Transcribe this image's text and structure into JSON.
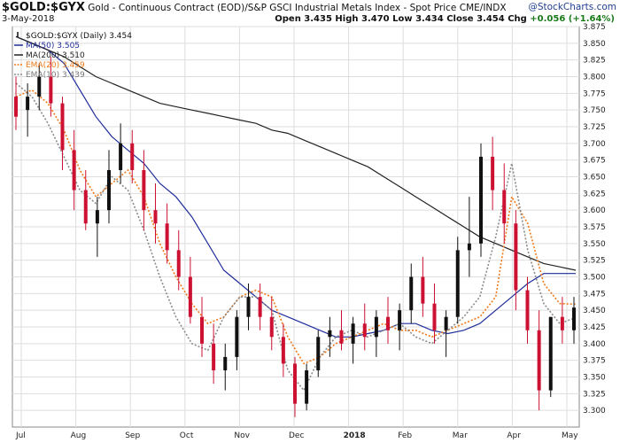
{
  "header": {
    "symbol": "$GOLD:$GYX",
    "description": "Gold - Continuous Contract (EOD)/S&P GSCI Industrial Metals Index - Spot Price",
    "exchange": "CME/INDX",
    "date": "3-May-2018",
    "brand": "@StockCharts.com",
    "ohlc": {
      "open_label": "Open",
      "open": "3.435",
      "high_label": "High",
      "high": "3.470",
      "low_label": "Low",
      "low": "3.434",
      "close_label": "Close",
      "close": "3.454",
      "chg_label": "Chg",
      "chg": "+0.056 (+1.64%)"
    }
  },
  "legend": [
    {
      "label": "$GOLD:$GYX (Daily) 3.454",
      "color": "#111111",
      "style": "price"
    },
    {
      "label": "MA(50) 3.505",
      "color": "#1f2d9a",
      "style": "solid"
    },
    {
      "label": "MA(200) 3.510",
      "color": "#222222",
      "style": "solid"
    },
    {
      "label": "EMA(20) 3.459",
      "color": "#f07a1a",
      "style": "dotted"
    },
    {
      "label": "EMA(10) 3.439",
      "color": "#8a8a8a",
      "style": "dotted"
    }
  ],
  "chart_data": {
    "type": "ohlc",
    "x_ticks": [
      "Jul",
      "Aug",
      "Sep",
      "Oct",
      "Nov",
      "Dec",
      "2018",
      "Feb",
      "Mar",
      "Apr",
      "May"
    ],
    "ylim": [
      3.275,
      3.875
    ],
    "y_ticks": [
      3.3,
      3.325,
      3.35,
      3.375,
      3.4,
      3.425,
      3.45,
      3.475,
      3.5,
      3.525,
      3.55,
      3.575,
      3.6,
      3.625,
      3.65,
      3.675,
      3.7,
      3.725,
      3.75,
      3.775,
      3.8,
      3.825,
      3.85,
      3.875
    ],
    "up_color": "#111111",
    "down_color": "#cc1133",
    "grid": true,
    "series": [
      {
        "name": "MA(50)",
        "color": "#1f2d9a",
        "values": [
          3.86,
          3.85,
          3.84,
          3.82,
          3.78,
          3.74,
          3.71,
          3.69,
          3.67,
          3.64,
          3.62,
          3.59,
          3.55,
          3.51,
          3.49,
          3.47,
          3.45,
          3.44,
          3.43,
          3.42,
          3.41,
          3.41,
          3.415,
          3.42,
          3.43,
          3.43,
          3.42,
          3.415,
          3.42,
          3.43,
          3.45,
          3.47,
          3.49,
          3.505,
          3.505,
          3.505
        ]
      },
      {
        "name": "MA(200)",
        "color": "#222222",
        "values": [
          3.86,
          3.85,
          3.84,
          3.83,
          3.815,
          3.8,
          3.79,
          3.78,
          3.77,
          3.76,
          3.755,
          3.75,
          3.745,
          3.74,
          3.735,
          3.73,
          3.72,
          3.715,
          3.705,
          3.695,
          3.685,
          3.675,
          3.665,
          3.65,
          3.635,
          3.62,
          3.605,
          3.59,
          3.575,
          3.56,
          3.55,
          3.54,
          3.53,
          3.52,
          3.515,
          3.51
        ]
      },
      {
        "name": "EMA(20)",
        "color": "#f07a1a",
        "values": [
          3.77,
          3.78,
          3.76,
          3.72,
          3.66,
          3.62,
          3.64,
          3.66,
          3.62,
          3.55,
          3.5,
          3.46,
          3.43,
          3.44,
          3.47,
          3.48,
          3.47,
          3.41,
          3.37,
          3.38,
          3.4,
          3.41,
          3.42,
          3.43,
          3.42,
          3.42,
          3.41,
          3.42,
          3.43,
          3.44,
          3.47,
          3.62,
          3.58,
          3.49,
          3.46,
          3.459
        ]
      },
      {
        "name": "EMA(10)",
        "color": "#8a8a8a",
        "values": [
          3.79,
          3.77,
          3.73,
          3.68,
          3.63,
          3.61,
          3.65,
          3.63,
          3.57,
          3.5,
          3.44,
          3.4,
          3.39,
          3.44,
          3.47,
          3.47,
          3.45,
          3.36,
          3.33,
          3.38,
          3.41,
          3.42,
          3.41,
          3.42,
          3.43,
          3.41,
          3.4,
          3.42,
          3.44,
          3.47,
          3.56,
          3.67,
          3.54,
          3.46,
          3.43,
          3.439
        ]
      }
    ],
    "bars": [
      [
        3.77,
        3.8,
        3.72,
        3.74
      ],
      [
        3.75,
        3.79,
        3.71,
        3.77
      ],
      [
        3.77,
        3.82,
        3.75,
        3.8
      ],
      [
        3.8,
        3.83,
        3.74,
        3.76
      ],
      [
        3.76,
        3.77,
        3.66,
        3.69
      ],
      [
        3.69,
        3.72,
        3.6,
        3.63
      ],
      [
        3.63,
        3.66,
        3.57,
        3.58
      ],
      [
        3.58,
        3.62,
        3.53,
        3.6
      ],
      [
        3.6,
        3.69,
        3.58,
        3.66
      ],
      [
        3.66,
        3.73,
        3.64,
        3.7
      ],
      [
        3.7,
        3.72,
        3.64,
        3.66
      ],
      [
        3.66,
        3.69,
        3.57,
        3.6
      ],
      [
        3.6,
        3.64,
        3.55,
        3.58
      ],
      [
        3.58,
        3.61,
        3.52,
        3.54
      ],
      [
        3.54,
        3.57,
        3.48,
        3.5
      ],
      [
        3.5,
        3.53,
        3.43,
        3.44
      ],
      [
        3.44,
        3.47,
        3.38,
        3.4
      ],
      [
        3.4,
        3.43,
        3.34,
        3.36
      ],
      [
        3.36,
        3.4,
        3.33,
        3.38
      ],
      [
        3.38,
        3.45,
        3.36,
        3.44
      ],
      [
        3.44,
        3.49,
        3.42,
        3.47
      ],
      [
        3.47,
        3.49,
        3.42,
        3.44
      ],
      [
        3.44,
        3.47,
        3.39,
        3.41
      ],
      [
        3.41,
        3.43,
        3.35,
        3.37
      ],
      [
        3.37,
        3.38,
        3.29,
        3.31
      ],
      [
        3.31,
        3.37,
        3.3,
        3.36
      ],
      [
        3.36,
        3.42,
        3.35,
        3.41
      ],
      [
        3.41,
        3.44,
        3.38,
        3.42
      ],
      [
        3.42,
        3.45,
        3.39,
        3.4
      ],
      [
        3.4,
        3.44,
        3.37,
        3.43
      ],
      [
        3.43,
        3.46,
        3.39,
        3.41
      ],
      [
        3.41,
        3.45,
        3.38,
        3.44
      ],
      [
        3.44,
        3.47,
        3.4,
        3.42
      ],
      [
        3.42,
        3.46,
        3.39,
        3.45
      ],
      [
        3.45,
        3.52,
        3.43,
        3.5
      ],
      [
        3.5,
        3.53,
        3.44,
        3.46
      ],
      [
        3.46,
        3.49,
        3.4,
        3.42
      ],
      [
        3.42,
        3.45,
        3.38,
        3.44
      ],
      [
        3.44,
        3.56,
        3.43,
        3.54
      ],
      [
        3.54,
        3.62,
        3.5,
        3.55
      ],
      [
        3.55,
        3.7,
        3.53,
        3.68
      ],
      [
        3.68,
        3.71,
        3.6,
        3.63
      ],
      [
        3.63,
        3.67,
        3.55,
        3.58
      ],
      [
        3.58,
        3.6,
        3.45,
        3.48
      ],
      [
        3.48,
        3.5,
        3.4,
        3.42
      ],
      [
        3.42,
        3.45,
        3.3,
        3.33
      ],
      [
        3.33,
        3.42,
        3.32,
        3.44
      ],
      [
        3.44,
        3.47,
        3.4,
        3.42
      ],
      [
        3.42,
        3.47,
        3.4,
        3.454
      ]
    ]
  }
}
